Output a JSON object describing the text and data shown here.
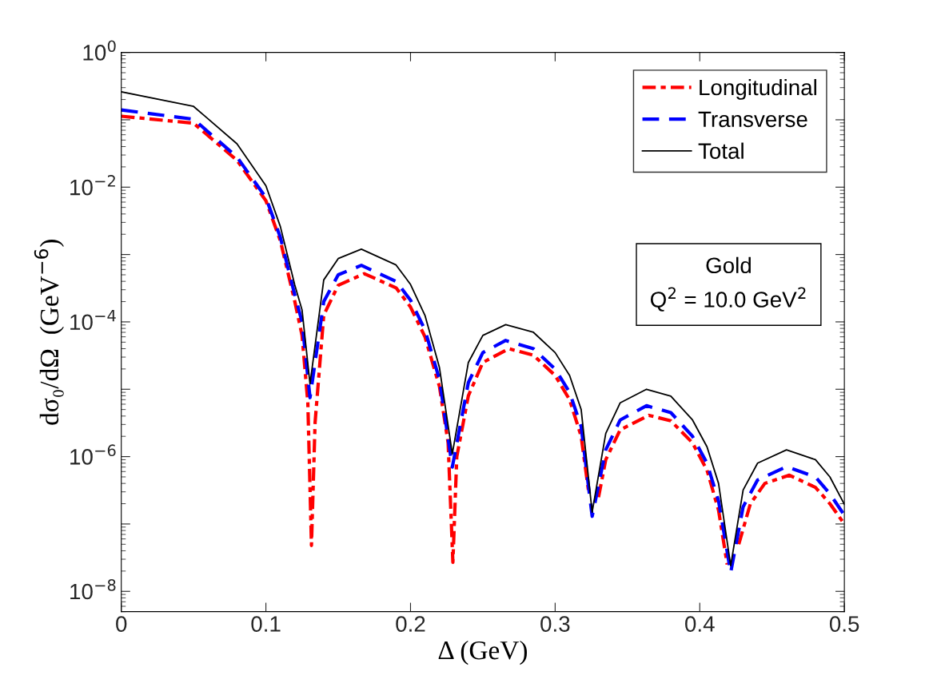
{
  "chart_data": {
    "type": "line",
    "xlabel": "Δ (GeV)",
    "ylabel": "dσ₀/dΩ  (GeV$^{−6}$)",
    "log": "y",
    "xlim": [
      0,
      0.5
    ],
    "xticks": [
      0,
      0.1,
      0.2,
      0.3,
      0.4,
      0.5
    ],
    "ylim": [
      5e-09,
      1
    ],
    "yticks": [
      {
        "value": 1,
        "label": "10$^{0}$"
      },
      {
        "value": 0.1,
        "label": null
      },
      {
        "value": 0.01,
        "label": "10$^{−2}$"
      },
      {
        "value": 0.001,
        "label": null
      },
      {
        "value": 0.0001,
        "label": "10$^{−4}$"
      },
      {
        "value": 1e-05,
        "label": null
      },
      {
        "value": 1e-06,
        "label": "10$^{−6}$"
      },
      {
        "value": 1e-07,
        "label": null
      },
      {
        "value": 1e-08,
        "label": "10$^{−8}$"
      }
    ],
    "grid": false,
    "legend": "top right",
    "annotations": [
      "Gold",
      "Q$^{2}$ = 10.0 GeV$^{2}$"
    ],
    "series": [
      {
        "name": "Longitudinal",
        "color": "#ff0000",
        "line_style": "dashdot",
        "x": [
          0,
          0.05,
          0.08,
          0.1,
          0.11,
          0.12,
          0.125,
          0.129,
          0.1315,
          0.134,
          0.14,
          0.15,
          0.168,
          0.19,
          0.2,
          0.21,
          0.22,
          0.226,
          0.2293,
          0.232,
          0.24,
          0.25,
          0.268,
          0.285,
          0.3,
          0.31,
          0.318,
          0.323,
          0.3262,
          0.3275,
          0.33,
          0.335,
          0.345,
          0.3648,
          0.38,
          0.395,
          0.405,
          0.413,
          0.419,
          0.4225,
          0.4245,
          0.427,
          0.435,
          0.445,
          0.462,
          0.48,
          0.49,
          0.5
        ],
        "values": [
          0.113,
          0.089,
          0.025,
          0.0063,
          0.0016,
          0.0002,
          6.3e-05,
          6.3e-06,
          4.8e-08,
          3.2e-06,
          0.000126,
          0.00035,
          0.00052,
          0.00032,
          0.000166,
          6e-05,
          1.1e-05,
          1.6e-06,
          2.7e-08,
          1e-06,
          8e-06,
          2.5e-05,
          4e-05,
          3.2e-05,
          1.6e-05,
          7e-06,
          2e-06,
          3.2e-07,
          null,
          null,
          2.5e-07,
          9e-07,
          2.5e-06,
          4.1e-06,
          3.4e-06,
          1.6e-06,
          6.3e-07,
          1.6e-07,
          2.5e-08,
          null,
          null,
          5e-08,
          2e-07,
          4e-07,
          5.3e-07,
          3.5e-07,
          2e-07,
          1e-07
        ]
      },
      {
        "name": "Transverse",
        "color": "#0000ff",
        "line_style": "dashed",
        "x": [
          0,
          0.05,
          0.08,
          0.1,
          0.11,
          0.12,
          0.125,
          0.1305,
          0.14,
          0.15,
          0.166,
          0.19,
          0.2,
          0.21,
          0.22,
          0.2289,
          0.24,
          0.25,
          0.2658,
          0.285,
          0.3,
          0.31,
          0.318,
          0.3256,
          0.335,
          0.345,
          0.3632,
          0.38,
          0.395,
          0.405,
          0.413,
          0.4214,
          0.43,
          0.44,
          0.46,
          0.48,
          0.49,
          0.5
        ],
        "values": [
          0.14,
          0.102,
          0.028,
          0.007,
          0.0018,
          0.00025,
          0.0001,
          7.5e-06,
          0.0002,
          0.0005,
          0.00069,
          0.0004,
          0.00021,
          7.6e-05,
          1.4e-05,
          7e-07,
          1.26e-05,
          3.5e-05,
          5.3e-05,
          4e-05,
          2e-05,
          9e-06,
          2.8e-06,
          1.3e-07,
          1.26e-06,
          3.5e-06,
          5.7e-06,
          4.5e-06,
          2e-06,
          8e-07,
          2.2e-07,
          1.9e-08,
          1.8e-07,
          4.5e-07,
          7.1e-07,
          5e-07,
          2.8e-07,
          1.35e-07
        ]
      },
      {
        "name": "Total",
        "color": "#000000",
        "line_style": "solid",
        "x": [
          0,
          0.05,
          0.08,
          0.1,
          0.11,
          0.12,
          0.125,
          0.1305,
          0.14,
          0.15,
          0.166,
          0.19,
          0.2,
          0.21,
          0.22,
          0.2289,
          0.24,
          0.25,
          0.2658,
          0.285,
          0.3,
          0.31,
          0.318,
          0.3256,
          0.335,
          0.345,
          0.3632,
          0.38,
          0.395,
          0.405,
          0.413,
          0.4214,
          0.43,
          0.44,
          0.46,
          0.48,
          0.49,
          0.5
        ],
        "values": [
          0.26,
          0.158,
          0.044,
          0.0105,
          0.0026,
          0.00035,
          0.00015,
          1.2e-05,
          0.00042,
          0.00087,
          0.0012,
          0.0007,
          0.00036,
          0.000125,
          2.1e-05,
          1.1e-06,
          2.5e-05,
          6.3e-05,
          9.1e-05,
          7e-05,
          3.5e-05,
          1.6e-05,
          5e-06,
          1.5e-07,
          2.2e-06,
          6.3e-06,
          1e-05,
          7.9e-06,
          3.5e-06,
          1.4e-06,
          4e-07,
          2.4e-08,
          3.2e-07,
          8e-07,
          1.26e-06,
          9e-07,
          5e-07,
          1.96e-07
        ]
      }
    ]
  }
}
